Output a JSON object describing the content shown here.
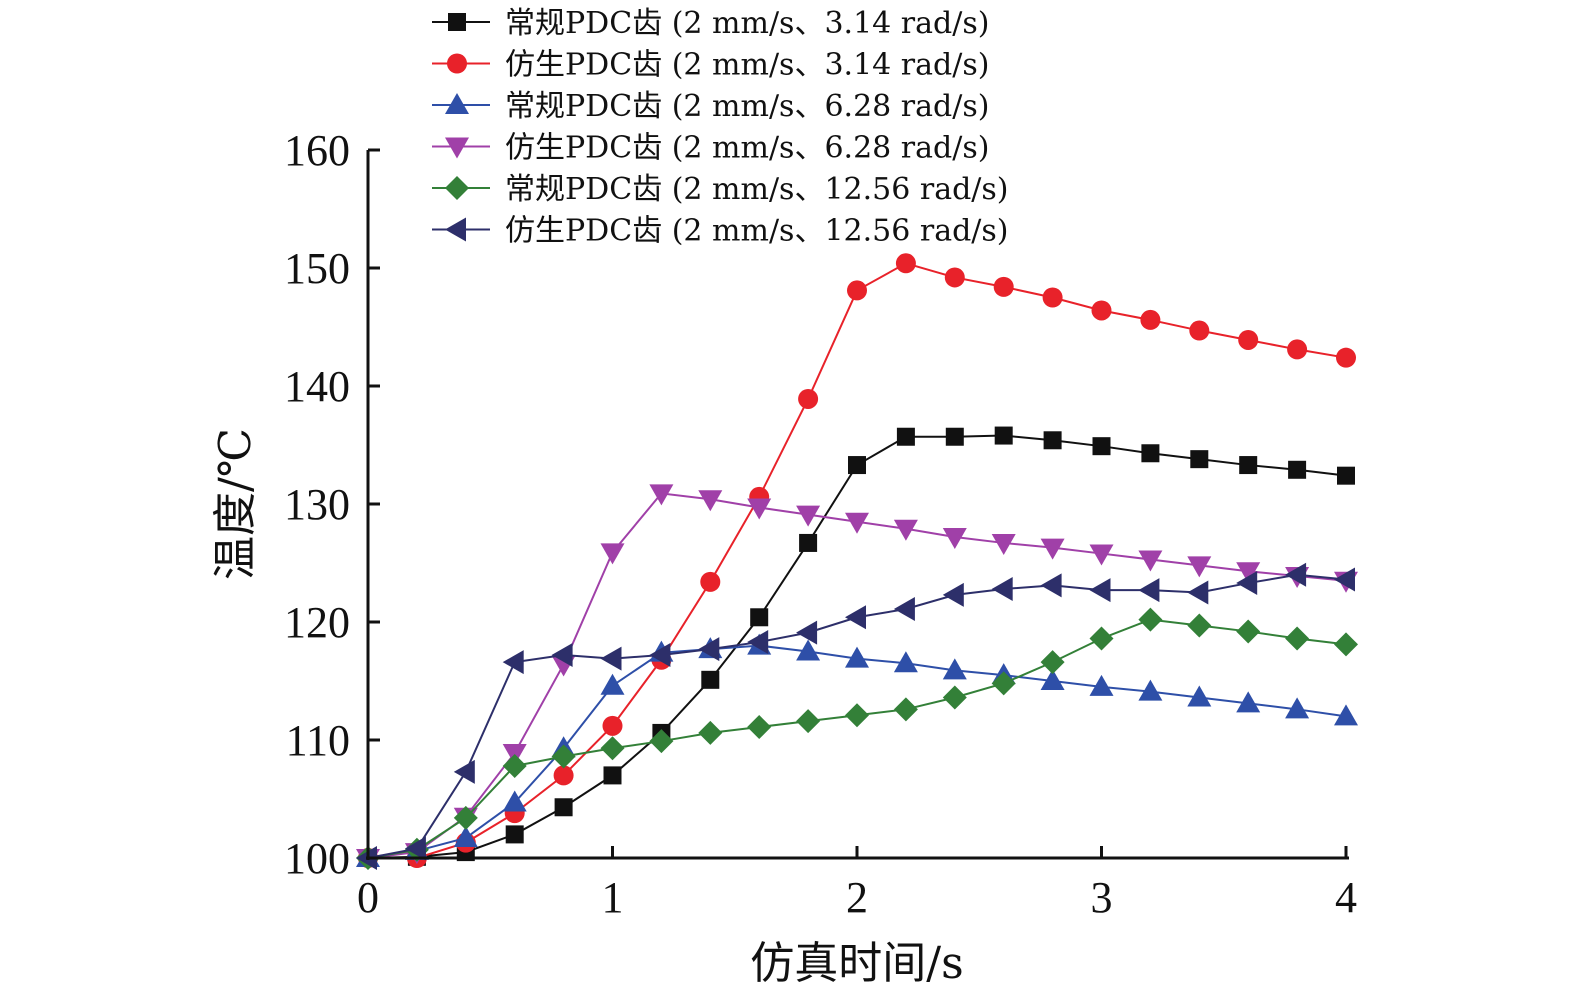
{
  "chart_data": {
    "type": "line",
    "title": "",
    "xlabel": "仿真时间/s",
    "ylabel": "温度/℃",
    "xlim": [
      0,
      4
    ],
    "ylim": [
      100,
      160
    ],
    "xticks": [
      0,
      1,
      2,
      3,
      4
    ],
    "yticks": [
      100,
      110,
      120,
      130,
      140,
      150,
      160
    ],
    "grid": false,
    "legend_position": "top",
    "x": [
      0,
      0.2,
      0.4,
      0.6,
      0.8,
      1.0,
      1.2,
      1.4,
      1.6,
      1.8,
      2.0,
      2.2,
      2.4,
      2.6,
      2.8,
      3.0,
      3.2,
      3.4,
      3.6,
      3.8,
      4.0
    ],
    "series": [
      {
        "name": "常规PDC齿 (2 mm/s、3.14 rad/s)",
        "color": "#111111",
        "marker": "square",
        "values": [
          100.0,
          100.1,
          100.5,
          102.0,
          104.3,
          107.0,
          110.6,
          115.1,
          120.4,
          126.7,
          133.3,
          135.7,
          135.7,
          135.8,
          135.4,
          134.9,
          134.3,
          133.8,
          133.3,
          132.9,
          132.4
        ]
      },
      {
        "name": "仿生PDC齿 (2 mm/s、3.14 rad/s)",
        "color": "#e8222a",
        "marker": "circle",
        "values": [
          100.0,
          100.0,
          101.3,
          103.8,
          107.0,
          111.2,
          116.8,
          123.4,
          130.6,
          138.9,
          148.1,
          150.4,
          149.2,
          148.4,
          147.5,
          146.4,
          145.6,
          144.7,
          143.9,
          143.1,
          142.4
        ]
      },
      {
        "name": "常规PDC齿 (2 mm/s、6.28 rad/s)",
        "color": "#2e4fa8",
        "marker": "triangle-up",
        "values": [
          100.0,
          100.6,
          101.7,
          104.7,
          109.3,
          114.6,
          117.4,
          117.7,
          118.0,
          117.5,
          116.9,
          116.5,
          115.9,
          115.5,
          115.0,
          114.5,
          114.1,
          113.6,
          113.1,
          112.6,
          112.0
        ]
      },
      {
        "name": "仿生PDC齿 (2 mm/s、6.28 rad/s)",
        "color": "#a040a8",
        "marker": "triangle-down",
        "values": [
          100.0,
          100.5,
          103.5,
          108.9,
          116.4,
          125.9,
          130.9,
          130.4,
          129.7,
          129.1,
          128.5,
          127.9,
          127.2,
          126.7,
          126.3,
          125.8,
          125.3,
          124.8,
          124.3,
          123.9,
          123.5
        ]
      },
      {
        "name": "常规PDC齿 (2 mm/s、12.56 rad/s)",
        "color": "#338038",
        "marker": "diamond",
        "values": [
          100.0,
          100.7,
          103.4,
          107.8,
          108.6,
          109.3,
          109.9,
          110.6,
          111.1,
          111.6,
          112.1,
          112.6,
          113.6,
          114.8,
          116.6,
          118.6,
          120.2,
          119.7,
          119.2,
          118.6,
          118.1
        ]
      },
      {
        "name": "仿生PDC齿 (2 mm/s、12.56 rad/s)",
        "color": "#2d2f6a",
        "marker": "triangle-left",
        "values": [
          100.0,
          100.8,
          107.3,
          116.6,
          117.2,
          116.9,
          117.2,
          117.7,
          118.3,
          119.1,
          120.4,
          121.1,
          122.3,
          122.8,
          123.1,
          122.7,
          122.7,
          122.5,
          123.3,
          124.0,
          123.6
        ]
      }
    ]
  }
}
